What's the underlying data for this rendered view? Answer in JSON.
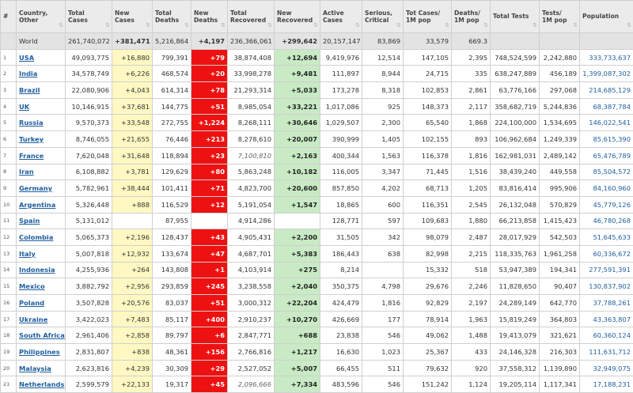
{
  "headers": [
    {
      "label": "#",
      "sort": ""
    },
    {
      "label": "Country, Other",
      "sort": "⇅"
    },
    {
      "label": "Total Cases",
      "sort": "⇅"
    },
    {
      "label": "New Cases",
      "sort": "⇅"
    },
    {
      "label": "Total Deaths",
      "sort": "⇅"
    },
    {
      "label": "New Deaths",
      "sort": "⇅"
    },
    {
      "label": "Total Recovered",
      "sort": "⇅"
    },
    {
      "label": "New Recovered",
      "sort": "⇅"
    },
    {
      "label": "Active Cases",
      "sort": "⇅"
    },
    {
      "label": "Serious, Critical",
      "sort": "⇅"
    },
    {
      "label": "Tot Cases/ 1M pop",
      "sort": "⇅"
    },
    {
      "label": "Deaths/ 1M pop",
      "sort": "⇅"
    },
    {
      "label": "Total Tests",
      "sort": "⇅"
    },
    {
      "label": "Tests/ 1M pop",
      "sort": "⇅"
    },
    {
      "label": "Population",
      "sort": "⇅"
    }
  ],
  "world": {
    "idx": "",
    "country": "World",
    "total_cases": "261,740,072",
    "new_cases": "+381,471",
    "total_deaths": "5,216,864",
    "new_deaths": "+4,197",
    "total_recovered": "236,366,061",
    "new_recovered": "+299,642",
    "active": "20,157,147",
    "serious": "83,869",
    "cases_per_m": "33,579",
    "deaths_per_m": "669.3",
    "total_tests": "",
    "tests_per_m": "",
    "population": ""
  },
  "rows": [
    {
      "idx": "1",
      "country": "USA",
      "total_cases": "49,093,775",
      "new_cases": "+16,880",
      "total_deaths": "799,391",
      "new_deaths": "+79",
      "total_recovered": "38,874,408",
      "new_recovered": "+12,694",
      "active": "9,419,976",
      "serious": "12,514",
      "cases_per_m": "147,105",
      "deaths_per_m": "2,395",
      "total_tests": "748,524,599",
      "tests_per_m": "2,242,880",
      "population": "333,733,637"
    },
    {
      "idx": "2",
      "country": "India",
      "total_cases": "34,578,749",
      "new_cases": "+6,226",
      "total_deaths": "468,574",
      "new_deaths": "+20",
      "total_recovered": "33,998,278",
      "new_recovered": "+9,481",
      "active": "111,897",
      "serious": "8,944",
      "cases_per_m": "24,715",
      "deaths_per_m": "335",
      "total_tests": "638,247,889",
      "tests_per_m": "456,189",
      "population": "1,399,087,302"
    },
    {
      "idx": "3",
      "country": "Brazil",
      "total_cases": "22,080,906",
      "new_cases": "+4,043",
      "total_deaths": "614,314",
      "new_deaths": "+78",
      "total_recovered": "21,293,314",
      "new_recovered": "+5,033",
      "active": "173,278",
      "serious": "8,318",
      "cases_per_m": "102,853",
      "deaths_per_m": "2,861",
      "total_tests": "63,776,166",
      "tests_per_m": "297,068",
      "population": "214,685,129"
    },
    {
      "idx": "4",
      "country": "UK",
      "total_cases": "10,146,915",
      "new_cases": "+37,681",
      "total_deaths": "144,775",
      "new_deaths": "+51",
      "total_recovered": "8,985,054",
      "new_recovered": "+33,221",
      "active": "1,017,086",
      "serious": "925",
      "cases_per_m": "148,373",
      "deaths_per_m": "2,117",
      "total_tests": "358,682,719",
      "tests_per_m": "5,244,836",
      "population": "68,387,784"
    },
    {
      "idx": "5",
      "country": "Russia",
      "total_cases": "9,570,373",
      "new_cases": "+33,548",
      "total_deaths": "272,755",
      "new_deaths": "+1,224",
      "total_recovered": "8,268,111",
      "new_recovered": "+30,646",
      "active": "1,029,507",
      "serious": "2,300",
      "cases_per_m": "65,540",
      "deaths_per_m": "1,868",
      "total_tests": "224,100,000",
      "tests_per_m": "1,534,695",
      "population": "146,022,541"
    },
    {
      "idx": "6",
      "country": "Turkey",
      "total_cases": "8,746,055",
      "new_cases": "+21,655",
      "total_deaths": "76,446",
      "new_deaths": "+213",
      "total_recovered": "8,278,610",
      "new_recovered": "+20,007",
      "active": "390,999",
      "serious": "1,405",
      "cases_per_m": "102,155",
      "deaths_per_m": "893",
      "total_tests": "106,962,684",
      "tests_per_m": "1,249,339",
      "population": "85,615,390"
    },
    {
      "idx": "7",
      "country": "France",
      "total_cases": "7,620,048",
      "new_cases": "+31,648",
      "total_deaths": "118,894",
      "new_deaths": "+23",
      "total_recovered": "7,100,810",
      "new_recovered": "+2,163",
      "active": "400,344",
      "serious": "1,563",
      "cases_per_m": "116,378",
      "deaths_per_m": "1,816",
      "total_tests": "162,981,031",
      "tests_per_m": "2,489,142",
      "population": "65,476,789",
      "recovered_italic": true
    },
    {
      "idx": "8",
      "country": "Iran",
      "total_cases": "6,108,882",
      "new_cases": "+3,781",
      "total_deaths": "129,629",
      "new_deaths": "+80",
      "total_recovered": "5,863,248",
      "new_recovered": "+10,182",
      "active": "116,005",
      "serious": "3,347",
      "cases_per_m": "71,445",
      "deaths_per_m": "1,516",
      "total_tests": "38,439,240",
      "tests_per_m": "449,558",
      "population": "85,504,572"
    },
    {
      "idx": "9",
      "country": "Germany",
      "total_cases": "5,782,961",
      "new_cases": "+38,444",
      "total_deaths": "101,411",
      "new_deaths": "+71",
      "total_recovered": "4,823,700",
      "new_recovered": "+20,600",
      "active": "857,850",
      "serious": "4,202",
      "cases_per_m": "68,713",
      "deaths_per_m": "1,205",
      "total_tests": "83,816,414",
      "tests_per_m": "995,906",
      "population": "84,160,960"
    },
    {
      "idx": "10",
      "country": "Argentina",
      "total_cases": "5,326,448",
      "new_cases": "+888",
      "total_deaths": "116,529",
      "new_deaths": "+12",
      "total_recovered": "5,191,054",
      "new_recovered": "+1,547",
      "active": "18,865",
      "serious": "600",
      "cases_per_m": "116,351",
      "deaths_per_m": "2,545",
      "total_tests": "26,132,048",
      "tests_per_m": "570,829",
      "population": "45,779,126"
    },
    {
      "idx": "11",
      "country": "Spain",
      "total_cases": "5,131,012",
      "new_cases": "",
      "total_deaths": "87,955",
      "new_deaths": "",
      "total_recovered": "4,914,286",
      "new_recovered": "",
      "active": "128,771",
      "serious": "597",
      "cases_per_m": "109,683",
      "deaths_per_m": "1,880",
      "total_tests": "66,213,858",
      "tests_per_m": "1,415,423",
      "population": "46,780,268"
    },
    {
      "idx": "12",
      "country": "Colombia",
      "total_cases": "5,065,373",
      "new_cases": "+2,196",
      "total_deaths": "128,437",
      "new_deaths": "+43",
      "total_recovered": "4,905,431",
      "new_recovered": "+2,200",
      "active": "31,505",
      "serious": "342",
      "cases_per_m": "98,079",
      "deaths_per_m": "2,487",
      "total_tests": "28,017,929",
      "tests_per_m": "542,503",
      "population": "51,645,633"
    },
    {
      "idx": "13",
      "country": "Italy",
      "total_cases": "5,007,818",
      "new_cases": "+12,932",
      "total_deaths": "133,674",
      "new_deaths": "+47",
      "total_recovered": "4,687,701",
      "new_recovered": "+5,383",
      "active": "186,443",
      "serious": "638",
      "cases_per_m": "82,998",
      "deaths_per_m": "2,215",
      "total_tests": "118,335,763",
      "tests_per_m": "1,961,258",
      "population": "60,336,672"
    },
    {
      "idx": "14",
      "country": "Indonesia",
      "total_cases": "4,255,936",
      "new_cases": "+264",
      "total_deaths": "143,808",
      "new_deaths": "+1",
      "total_recovered": "4,103,914",
      "new_recovered": "+275",
      "active": "8,214",
      "serious": "",
      "cases_per_m": "15,332",
      "deaths_per_m": "518",
      "total_tests": "53,947,389",
      "tests_per_m": "194,341",
      "population": "277,591,391"
    },
    {
      "idx": "15",
      "country": "Mexico",
      "total_cases": "3,882,792",
      "new_cases": "+2,956",
      "total_deaths": "293,859",
      "new_deaths": "+245",
      "total_recovered": "3,238,558",
      "new_recovered": "+2,040",
      "active": "350,375",
      "serious": "4,798",
      "cases_per_m": "29,676",
      "deaths_per_m": "2,246",
      "total_tests": "11,828,650",
      "tests_per_m": "90,407",
      "population": "130,837,902"
    },
    {
      "idx": "16",
      "country": "Poland",
      "total_cases": "3,507,828",
      "new_cases": "+20,576",
      "total_deaths": "83,037",
      "new_deaths": "+51",
      "total_recovered": "3,000,312",
      "new_recovered": "+22,204",
      "active": "424,479",
      "serious": "1,816",
      "cases_per_m": "92,829",
      "deaths_per_m": "2,197",
      "total_tests": "24,289,149",
      "tests_per_m": "642,770",
      "population": "37,788,261"
    },
    {
      "idx": "17",
      "country": "Ukraine",
      "total_cases": "3,422,023",
      "new_cases": "+7,483",
      "total_deaths": "85,117",
      "new_deaths": "+400",
      "total_recovered": "2,910,237",
      "new_recovered": "+10,270",
      "active": "426,669",
      "serious": "177",
      "cases_per_m": "78,914",
      "deaths_per_m": "1,963",
      "total_tests": "15,819,249",
      "tests_per_m": "364,803",
      "population": "43,363,807"
    },
    {
      "idx": "18",
      "country": "South Africa",
      "total_cases": "2,961,406",
      "new_cases": "+2,858",
      "total_deaths": "89,797",
      "new_deaths": "+6",
      "total_recovered": "2,847,771",
      "new_recovered": "+688",
      "active": "23,838",
      "serious": "546",
      "cases_per_m": "49,062",
      "deaths_per_m": "1,488",
      "total_tests": "19,413,079",
      "tests_per_m": "321,621",
      "population": "60,360,124"
    },
    {
      "idx": "19",
      "country": "Philippines",
      "total_cases": "2,831,807",
      "new_cases": "+838",
      "total_deaths": "48,361",
      "new_deaths": "+156",
      "total_recovered": "2,766,816",
      "new_recovered": "+1,217",
      "active": "16,630",
      "serious": "1,023",
      "cases_per_m": "25,367",
      "deaths_per_m": "433",
      "total_tests": "24,146,328",
      "tests_per_m": "216,303",
      "population": "111,631,712"
    },
    {
      "idx": "20",
      "country": "Malaysia",
      "total_cases": "2,623,816",
      "new_cases": "+4,239",
      "total_deaths": "30,309",
      "new_deaths": "+29",
      "total_recovered": "2,527,052",
      "new_recovered": "+5,007",
      "active": "66,455",
      "serious": "511",
      "cases_per_m": "79,632",
      "deaths_per_m": "920",
      "total_tests": "37,558,312",
      "tests_per_m": "1,139,890",
      "population": "32,949,075"
    },
    {
      "idx": "21",
      "country": "Netherlands",
      "total_cases": "2,599,579",
      "new_cases": "+22,133",
      "total_deaths": "19,317",
      "new_deaths": "+45",
      "total_recovered": "2,096,666",
      "new_recovered": "+7,334",
      "active": "483,596",
      "serious": "546",
      "cases_per_m": "151,242",
      "deaths_per_m": "1,124",
      "total_tests": "19,205,114",
      "tests_per_m": "1,117,341",
      "population": "17,188,231",
      "recovered_italic": true
    }
  ],
  "colors": {
    "new_cases_bg": "#fff8c2",
    "new_deaths_bg": "#ee1111",
    "new_recovered_bg": "#c8eac4",
    "link": "#1e5e9e",
    "world_row_bg": "#e3e3e3",
    "header_bg": "#ebebeb"
  }
}
